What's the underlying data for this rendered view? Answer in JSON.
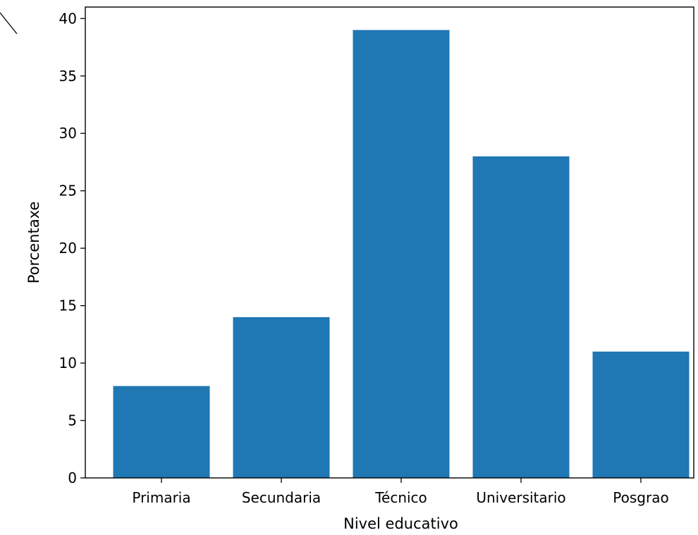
{
  "chart_data": {
    "type": "bar",
    "title": "",
    "categories": [
      "Primaria",
      "Secundaria",
      "Técnico",
      "Universitario",
      "Posgrao"
    ],
    "values": [
      8,
      14,
      39,
      28,
      11
    ],
    "xlabel": "Nivel educativo",
    "ylabel": "Porcentaxe",
    "ylim": [
      0,
      41
    ],
    "yticks": [
      0,
      5,
      10,
      15,
      20,
      25,
      30,
      35,
      40
    ],
    "grid": false,
    "colors": {
      "bar": "#1f77b4",
      "axis": "#000000"
    }
  }
}
